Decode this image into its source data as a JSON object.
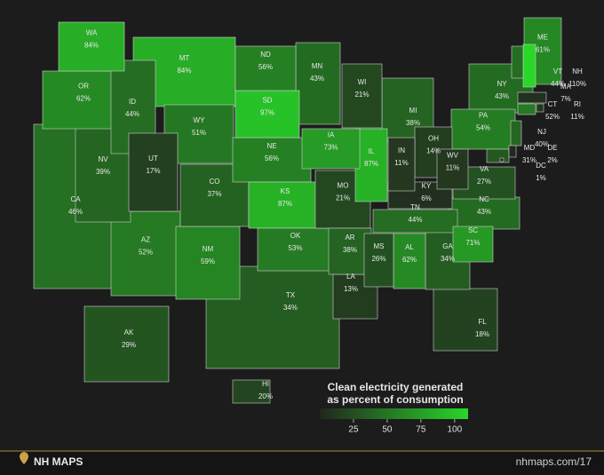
{
  "chart_data": {
    "type": "choropleth",
    "title": [
      "Clean electricity generated",
      "as percent of consumption"
    ],
    "regions": [
      "WA",
      "OR",
      "CA",
      "ID",
      "NV",
      "MT",
      "WY",
      "UT",
      "AZ",
      "CO",
      "NM",
      "ND",
      "SD",
      "NE",
      "KS",
      "TX",
      "OK",
      "MN",
      "IA",
      "MO",
      "AR",
      "LA",
      "WI",
      "IL",
      "MI",
      "IN",
      "OH",
      "KY",
      "TN",
      "MS",
      "AL",
      "GA",
      "FL",
      "SC",
      "NC",
      "VA",
      "WV",
      "PA",
      "NY",
      "VT",
      "NH",
      "ME",
      "MA",
      "RI",
      "CT",
      "NJ",
      "DE",
      "MD",
      "DC",
      "AK",
      "HI"
    ],
    "values": [
      84,
      62,
      46,
      44,
      39,
      84,
      51,
      17,
      52,
      37,
      59,
      56,
      97,
      56,
      87,
      34,
      53,
      43,
      73,
      21,
      38,
      13,
      21,
      87,
      38,
      11,
      14,
      6,
      44,
      26,
      62,
      34,
      18,
      71,
      43,
      27,
      11,
      54,
      43,
      44,
      110,
      61,
      7,
      11,
      52,
      40,
      2,
      31,
      1,
      29,
      20
    ],
    "value_labels": [
      "84%",
      "62%",
      "46%",
      "44%",
      "39%",
      "84%",
      "51%",
      "17%",
      "52%",
      "37%",
      "59%",
      "56%",
      "97%",
      "56%",
      "87%",
      "34%",
      "53%",
      "43%",
      "73%",
      "21%",
      "38%",
      "13%",
      "21%",
      "87%",
      "38%",
      "11%",
      "14%",
      "6%",
      "44%",
      "26%",
      "62%",
      "34%",
      "18%",
      "71%",
      "43%",
      "27%",
      "11%",
      "54%",
      "43%",
      "44%",
      "110%",
      "61%",
      "7%",
      "11%",
      "52%",
      "40%",
      "2%",
      "31%",
      "1%",
      "29%",
      "20%"
    ],
    "colorbar": {
      "lim": [
        0,
        110
      ],
      "ticks": [
        25,
        50,
        75,
        100
      ]
    },
    "footer": {
      "brand": "NH MAPS",
      "url": "nhmaps.com/17"
    }
  }
}
